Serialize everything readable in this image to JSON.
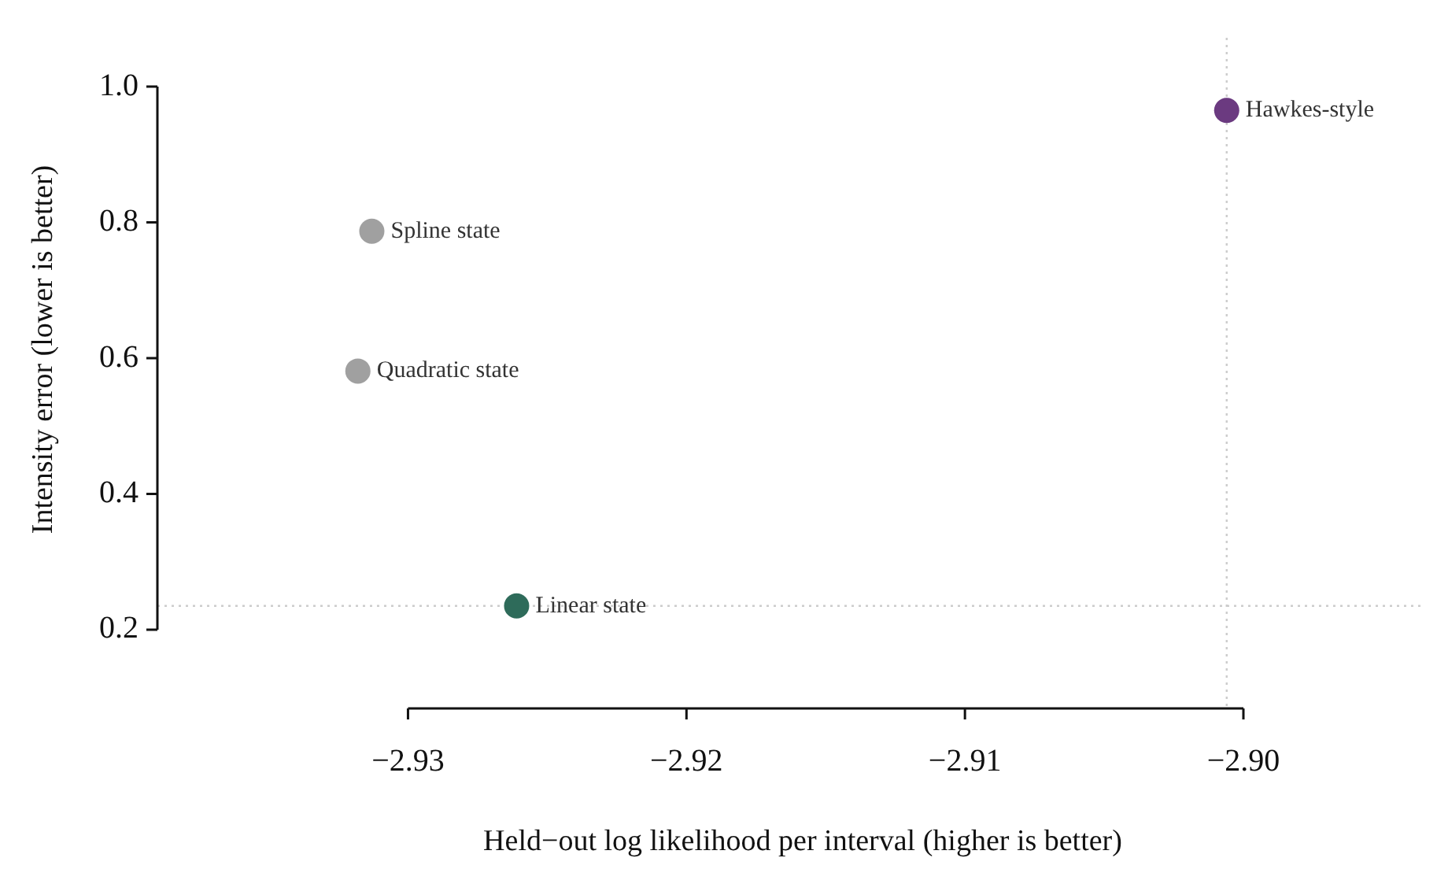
{
  "chart_data": {
    "type": "scatter",
    "xlabel": "Held−out log likelihood per interval (higher is better)",
    "ylabel": "Intensity error (lower is better)",
    "xlim": [
      -2.939,
      -2.8935
    ],
    "xticks": [
      -2.93,
      -2.92,
      -2.91,
      {
        "value": -2.9,
        "label": "−2.90"
      }
    ],
    "ylim": [
      0.084,
      1.072
    ],
    "yticks": [
      0.2,
      0.4,
      0.6,
      0.8,
      {
        "value": 1.0,
        "label": "1.0"
      }
    ],
    "grid": false,
    "legend": false,
    "marker": "circle",
    "series": [
      {
        "name": "Linear state",
        "color": "#2e6b5a",
        "x": [
          -2.9261
        ],
        "values": [
          0.235
        ]
      },
      {
        "name": "Quadratic state",
        "color": "#a0a0a0",
        "x": [
          -2.9318
        ],
        "values": [
          0.581
        ]
      },
      {
        "name": "Spline state",
        "color": "#a0a0a0",
        "x": [
          -2.9313
        ],
        "values": [
          0.787
        ]
      },
      {
        "name": "Hawkes-style",
        "color": "#6b3a80",
        "x": [
          -2.9006
        ],
        "values": [
          0.965
        ]
      }
    ],
    "ref_lines": [
      {
        "axis": "x",
        "value": -2.9006,
        "color": "#cccccc",
        "line_style": "dotted"
      },
      {
        "axis": "y",
        "value": 0.235,
        "color": "#cccccc",
        "line_style": "dotted"
      }
    ]
  }
}
